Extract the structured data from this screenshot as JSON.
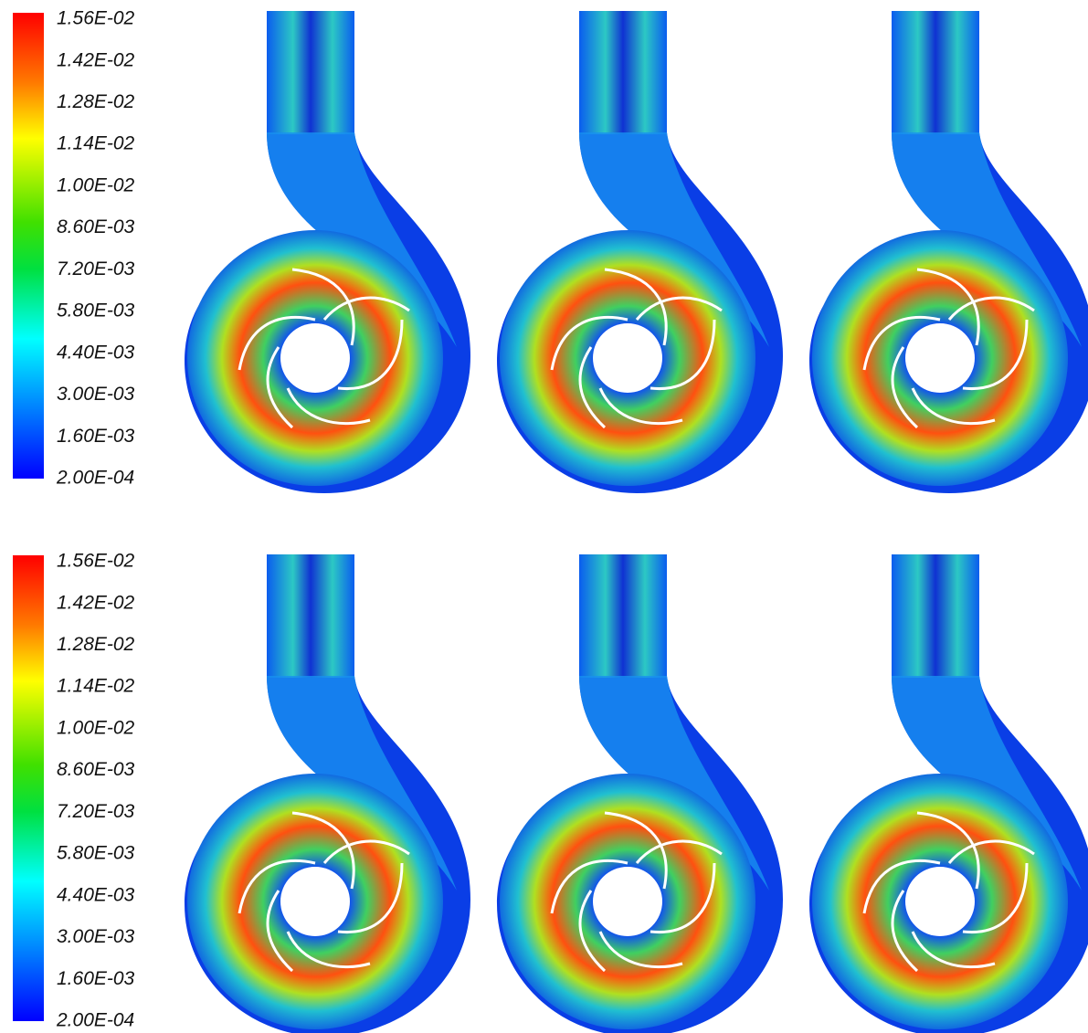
{
  "legends": [
    {
      "labels": [
        "1.56E-02",
        "1.42E-02",
        "1.28E-02",
        "1.14E-02",
        "1.00E-02",
        "8.60E-03",
        "7.20E-03",
        "5.80E-03",
        "4.40E-03",
        "3.00E-03",
        "1.60E-03",
        "2.00E-04"
      ]
    },
    {
      "labels": [
        "1.56E-02",
        "1.42E-02",
        "1.28E-02",
        "1.14E-02",
        "1.00E-02",
        "8.60E-03",
        "7.20E-03",
        "5.80E-03",
        "4.40E-03",
        "3.00E-03",
        "1.60E-03",
        "2.00E-04"
      ]
    }
  ]
}
